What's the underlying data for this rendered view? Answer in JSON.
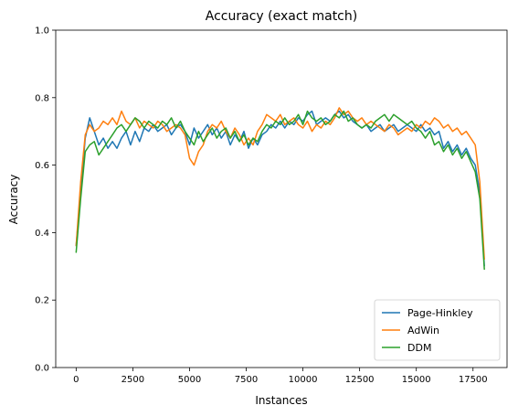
{
  "chart_data": {
    "type": "line",
    "title": "Accuracy (exact match)",
    "xlabel": "Instances",
    "ylabel": "Accuracy",
    "xlim": [
      -900,
      19000
    ],
    "ylim": [
      0.0,
      1.0
    ],
    "x_ticks": [
      0,
      2500,
      5000,
      7500,
      10000,
      12500,
      15000,
      17500
    ],
    "x_tick_labels": [
      "0",
      "2500",
      "5000",
      "7500",
      "10000",
      "12500",
      "15000",
      "17500"
    ],
    "y_ticks": [
      0.0,
      0.2,
      0.4,
      0.6,
      0.8,
      1.0
    ],
    "y_tick_labels": [
      "0.0",
      "0.2",
      "0.4",
      "0.6",
      "0.8",
      "1.0"
    ],
    "grid": false,
    "legend_position": "lower-right",
    "colors": [
      "#1f77b4",
      "#ff7f0e",
      "#2ca02c"
    ],
    "x": [
      0,
      200,
      400,
      600,
      800,
      1000,
      1200,
      1400,
      1600,
      1800,
      2000,
      2200,
      2400,
      2600,
      2800,
      3000,
      3200,
      3400,
      3600,
      3800,
      4000,
      4200,
      4400,
      4600,
      4800,
      5000,
      5200,
      5400,
      5600,
      5800,
      6000,
      6200,
      6400,
      6600,
      6800,
      7000,
      7200,
      7400,
      7600,
      7800,
      8000,
      8200,
      8400,
      8600,
      8800,
      9000,
      9200,
      9400,
      9600,
      9800,
      10000,
      10200,
      10400,
      10600,
      10800,
      11000,
      11200,
      11400,
      11600,
      11800,
      12000,
      12200,
      12400,
      12600,
      12800,
      13000,
      13200,
      13400,
      13600,
      13800,
      14000,
      14200,
      14400,
      14600,
      14800,
      15000,
      15200,
      15400,
      15600,
      15800,
      16000,
      16200,
      16400,
      16600,
      16800,
      17000,
      17200,
      17400,
      17600,
      17800,
      18000
    ],
    "series": [
      {
        "name": "Page-Hinkley",
        "values": [
          0.36,
          0.52,
          0.68,
          0.74,
          0.7,
          0.66,
          0.68,
          0.65,
          0.67,
          0.65,
          0.68,
          0.7,
          0.66,
          0.7,
          0.67,
          0.71,
          0.7,
          0.72,
          0.7,
          0.71,
          0.72,
          0.69,
          0.71,
          0.72,
          0.7,
          0.66,
          0.71,
          0.68,
          0.7,
          0.72,
          0.69,
          0.71,
          0.68,
          0.7,
          0.66,
          0.69,
          0.67,
          0.7,
          0.65,
          0.68,
          0.66,
          0.69,
          0.7,
          0.72,
          0.71,
          0.73,
          0.71,
          0.73,
          0.72,
          0.74,
          0.73,
          0.75,
          0.76,
          0.72,
          0.73,
          0.74,
          0.73,
          0.75,
          0.76,
          0.74,
          0.75,
          0.73,
          0.72,
          0.71,
          0.72,
          0.7,
          0.71,
          0.72,
          0.7,
          0.71,
          0.72,
          0.7,
          0.71,
          0.72,
          0.71,
          0.7,
          0.72,
          0.7,
          0.71,
          0.69,
          0.7,
          0.65,
          0.67,
          0.64,
          0.66,
          0.63,
          0.65,
          0.62,
          0.6,
          0.52,
          0.3
        ]
      },
      {
        "name": "AdWin",
        "values": [
          0.36,
          0.55,
          0.69,
          0.72,
          0.7,
          0.71,
          0.73,
          0.72,
          0.74,
          0.72,
          0.76,
          0.73,
          0.72,
          0.74,
          0.71,
          0.73,
          0.72,
          0.71,
          0.73,
          0.72,
          0.7,
          0.71,
          0.72,
          0.71,
          0.69,
          0.62,
          0.6,
          0.64,
          0.66,
          0.7,
          0.72,
          0.71,
          0.73,
          0.7,
          0.68,
          0.71,
          0.69,
          0.66,
          0.68,
          0.66,
          0.7,
          0.72,
          0.75,
          0.74,
          0.73,
          0.75,
          0.72,
          0.73,
          0.74,
          0.72,
          0.71,
          0.73,
          0.7,
          0.72,
          0.71,
          0.73,
          0.72,
          0.74,
          0.77,
          0.75,
          0.76,
          0.74,
          0.73,
          0.74,
          0.72,
          0.73,
          0.72,
          0.71,
          0.7,
          0.72,
          0.71,
          0.69,
          0.7,
          0.71,
          0.7,
          0.72,
          0.71,
          0.73,
          0.72,
          0.74,
          0.73,
          0.71,
          0.72,
          0.7,
          0.71,
          0.69,
          0.7,
          0.68,
          0.66,
          0.55,
          0.32
        ]
      },
      {
        "name": "DDM",
        "values": [
          0.34,
          0.5,
          0.64,
          0.66,
          0.67,
          0.63,
          0.65,
          0.67,
          0.69,
          0.71,
          0.72,
          0.7,
          0.72,
          0.74,
          0.73,
          0.71,
          0.73,
          0.72,
          0.71,
          0.73,
          0.72,
          0.74,
          0.71,
          0.73,
          0.7,
          0.68,
          0.66,
          0.7,
          0.67,
          0.69,
          0.71,
          0.68,
          0.7,
          0.71,
          0.68,
          0.7,
          0.67,
          0.69,
          0.66,
          0.68,
          0.67,
          0.7,
          0.72,
          0.71,
          0.73,
          0.72,
          0.74,
          0.72,
          0.73,
          0.75,
          0.72,
          0.76,
          0.74,
          0.73,
          0.74,
          0.72,
          0.73,
          0.75,
          0.74,
          0.76,
          0.73,
          0.74,
          0.72,
          0.71,
          0.72,
          0.71,
          0.73,
          0.74,
          0.75,
          0.73,
          0.75,
          0.74,
          0.73,
          0.72,
          0.73,
          0.71,
          0.7,
          0.68,
          0.7,
          0.66,
          0.67,
          0.64,
          0.66,
          0.63,
          0.65,
          0.62,
          0.64,
          0.61,
          0.58,
          0.5,
          0.29
        ]
      }
    ]
  }
}
